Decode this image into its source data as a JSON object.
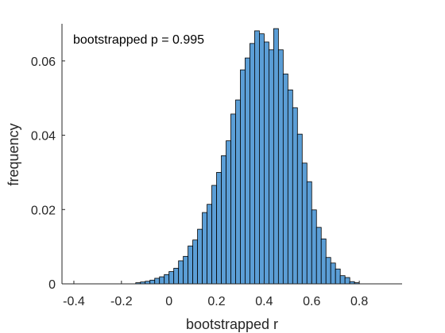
{
  "chart_data": {
    "type": "bar",
    "title": "",
    "xlabel": "bootstrapped r",
    "ylabel": "frequency",
    "annotation": "bootstrapped p = 0.995",
    "xlim": [
      -0.45,
      0.98
    ],
    "ylim": [
      0,
      0.07
    ],
    "xticks": [
      -0.4,
      -0.2,
      0,
      0.2,
      0.4,
      0.6,
      0.8
    ],
    "xtick_labels": [
      "-0.4",
      "-0.2",
      "0",
      "0.2",
      "0.4",
      "0.6",
      "0.8"
    ],
    "yticks": [
      0,
      0.02,
      0.04,
      0.06
    ],
    "ytick_labels": [
      "0",
      "0.02",
      "0.04",
      "0.06"
    ],
    "grid": false,
    "bin_width": 0.02,
    "bin_edges_start": -0.14,
    "values": [
      0.0003,
      0.0005,
      0.0007,
      0.001,
      0.0015,
      0.0019,
      0.0025,
      0.0033,
      0.0042,
      0.0062,
      0.0074,
      0.0102,
      0.0118,
      0.0147,
      0.0192,
      0.0214,
      0.0265,
      0.03,
      0.0345,
      0.0385,
      0.0457,
      0.0495,
      0.0576,
      0.0608,
      0.0647,
      0.0681,
      0.0673,
      0.0651,
      0.063,
      0.0687,
      0.063,
      0.0565,
      0.0522,
      0.0474,
      0.0403,
      0.0325,
      0.0275,
      0.0199,
      0.0152,
      0.0121,
      0.0071,
      0.0056,
      0.004,
      0.0022,
      0.0017,
      0.0006,
      0.0003
    ],
    "colors": {
      "bar_fill": "#5b9ed6",
      "bar_edge": "#000000",
      "axis": "#262626"
    }
  }
}
